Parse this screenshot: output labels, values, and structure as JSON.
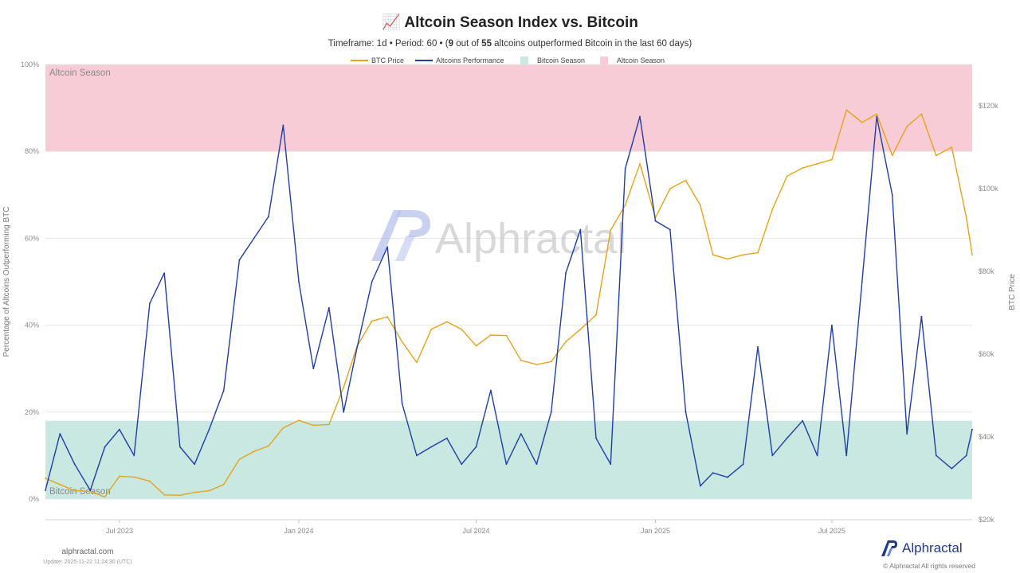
{
  "header": {
    "title_icon": "chart-increasing-emoji",
    "title": "Altcoin Season Index vs. Bitcoin",
    "subtitle_pre": "Timeframe: 1d  •  Period: 60  •  (",
    "subtitle_count": "9",
    "subtitle_mid": " out of ",
    "subtitle_total": "55",
    "subtitle_post": " altcoins outperformed Bitcoin in the last 60 days)"
  },
  "watermark": {
    "text": "Alphractal"
  },
  "footer": {
    "site": "alphractal.com",
    "update": "Update: 2025-11-22 11:24:30 (UTC)",
    "brand": "Alphractal",
    "rights": "© Alphractal All rights reserved"
  },
  "colors": {
    "btc": "#e8a317",
    "alt": "#1f3ea8",
    "altcoin_zone": "#f8ccd6",
    "bitcoin_zone": "#c9e8e2",
    "brand": "#1f3a8f"
  },
  "chart_data": {
    "type": "line",
    "title": "Altcoin Season Index vs. Bitcoin",
    "ylabel": "Percentage of Altcoins Outperforming BTC",
    "y2label": "BTC Price",
    "x_ticks": [
      "Jul 2023",
      "Jan 2024",
      "Jul 2024",
      "Jan 2025",
      "Jul 2025"
    ],
    "y_ticks": [
      "0%",
      "20%",
      "40%",
      "60%",
      "80%",
      "100%"
    ],
    "y2_ticks": [
      "$20k",
      "$40k",
      "$60k",
      "$80k",
      "$100k",
      "$120k"
    ],
    "ylim": [
      0,
      100
    ],
    "y2lim": [
      20000,
      130000
    ],
    "grid": true,
    "legend_position": "top-center",
    "bands": [
      {
        "name": "Bitcoin Season",
        "from": 0,
        "to": 18,
        "label": "Bitcoin Season"
      },
      {
        "name": "Altcoin Season",
        "from": 80,
        "to": 100,
        "label": "Altcoin Season"
      }
    ],
    "legend": [
      "BTC Price",
      "Altcoins Performance",
      "Bitcoin Season",
      "Altcoin Season"
    ],
    "series": [
      {
        "name": "BTC Price",
        "axis": "right",
        "x": [
          "2023-04-16",
          "2023-05-01",
          "2023-05-16",
          "2023-06-01",
          "2023-06-16",
          "2023-07-01",
          "2023-07-16",
          "2023-08-01",
          "2023-08-16",
          "2023-09-01",
          "2023-09-16",
          "2023-10-01",
          "2023-10-16",
          "2023-11-01",
          "2023-11-16",
          "2023-12-01",
          "2023-12-16",
          "2024-01-01",
          "2024-01-16",
          "2024-02-01",
          "2024-02-16",
          "2024-03-01",
          "2024-03-16",
          "2024-04-01",
          "2024-04-16",
          "2024-05-01",
          "2024-05-16",
          "2024-06-01",
          "2024-06-16",
          "2024-07-01",
          "2024-07-16",
          "2024-08-01",
          "2024-08-16",
          "2024-09-01",
          "2024-09-16",
          "2024-10-01",
          "2024-10-16",
          "2024-11-01",
          "2024-11-16",
          "2024-12-01",
          "2024-12-16",
          "2025-01-01",
          "2025-01-16",
          "2025-02-01",
          "2025-02-16",
          "2025-03-01",
          "2025-03-16",
          "2025-04-01",
          "2025-04-16",
          "2025-05-01",
          "2025-05-16",
          "2025-06-01",
          "2025-06-16",
          "2025-07-01",
          "2025-07-16",
          "2025-08-01",
          "2025-08-16",
          "2025-09-01",
          "2025-09-16",
          "2025-10-01",
          "2025-10-16",
          "2025-11-01",
          "2025-11-16",
          "2025-11-22"
        ],
        "values": [
          30000,
          28500,
          27000,
          26800,
          25500,
          30500,
          30300,
          29300,
          26000,
          25900,
          26600,
          27000,
          28500,
          34600,
          36500,
          37800,
          42200,
          44000,
          42800,
          43000,
          52000,
          62000,
          68000,
          69000,
          63000,
          58000,
          66000,
          67800,
          66000,
          62000,
          64600,
          64500,
          58500,
          57500,
          58200,
          63000,
          66000,
          69500,
          90000,
          96000,
          106000,
          93000,
          100000,
          102000,
          96000,
          84000,
          83000,
          84000,
          84500,
          95000,
          103000,
          105000,
          106000,
          107000,
          119000,
          116000,
          118000,
          108000,
          115000,
          118000,
          108000,
          110000,
          93000,
          84000
        ]
      },
      {
        "name": "Altcoins Performance",
        "axis": "left",
        "x": [
          "2023-04-16",
          "2023-05-01",
          "2023-05-16",
          "2023-06-01",
          "2023-06-16",
          "2023-07-01",
          "2023-07-16",
          "2023-08-01",
          "2023-08-16",
          "2023-09-01",
          "2023-09-16",
          "2023-10-01",
          "2023-10-16",
          "2023-11-01",
          "2023-11-16",
          "2023-12-01",
          "2023-12-16",
          "2024-01-01",
          "2024-01-16",
          "2024-02-01",
          "2024-02-16",
          "2024-03-01",
          "2024-03-16",
          "2024-04-01",
          "2024-04-16",
          "2024-05-01",
          "2024-05-16",
          "2024-06-01",
          "2024-06-16",
          "2024-07-01",
          "2024-07-16",
          "2024-08-01",
          "2024-08-16",
          "2024-09-01",
          "2024-09-16",
          "2024-10-01",
          "2024-10-16",
          "2024-11-01",
          "2024-11-16",
          "2024-12-01",
          "2024-12-16",
          "2025-01-01",
          "2025-01-16",
          "2025-02-01",
          "2025-02-16",
          "2025-03-01",
          "2025-03-16",
          "2025-04-01",
          "2025-04-16",
          "2025-05-01",
          "2025-05-16",
          "2025-06-01",
          "2025-06-16",
          "2025-07-01",
          "2025-07-16",
          "2025-08-01",
          "2025-08-16",
          "2025-09-01",
          "2025-09-16",
          "2025-10-01",
          "2025-10-16",
          "2025-11-01",
          "2025-11-16",
          "2025-11-22"
        ],
        "values": [
          2,
          15,
          8,
          2,
          12,
          16,
          10,
          45,
          52,
          12,
          8,
          16,
          25,
          55,
          60,
          65,
          86,
          50,
          30,
          44,
          20,
          35,
          50,
          58,
          22,
          10,
          12,
          14,
          8,
          12,
          25,
          8,
          15,
          8,
          20,
          52,
          62,
          14,
          8,
          76,
          88,
          64,
          62,
          20,
          3,
          6,
          5,
          8,
          35,
          10,
          14,
          18,
          10,
          40,
          10,
          50,
          88,
          70,
          15,
          42,
          10,
          7,
          10,
          16
        ]
      }
    ]
  }
}
